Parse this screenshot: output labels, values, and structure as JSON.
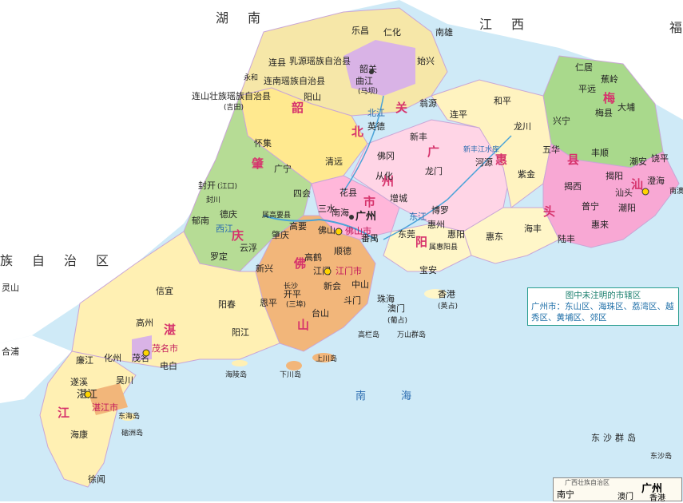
{
  "map": {
    "colors": {
      "sea": "#cfeaf7",
      "outside": "#ffffff",
      "shaoguan": "#f6e7a8",
      "qingyuan": "#ffe98f",
      "zhaoqing": "#b6dc95",
      "meizhou": "#a9d98c",
      "huizhou": "#ffd5e6",
      "guangzhou": "#ffb7da",
      "foshan": "#f2b67a",
      "jiangmen": "#f2b67a",
      "yangjiang": "#fff6c8",
      "maoming": "#ffef9f",
      "zhanjiang": "#fff0b3",
      "shantou": "#f8a8d4",
      "heyuan": "#fff3c0",
      "shanwei": "#f6c6e0"
    },
    "regions_outside": [
      {
        "id": "hunan",
        "label": "湖　南"
      },
      {
        "id": "jiangxi",
        "label": "江　西"
      },
      {
        "id": "fujian",
        "label": "福"
      },
      {
        "id": "guangxi",
        "label": "族　自　治　区"
      }
    ],
    "seas": [
      {
        "id": "nanhai",
        "label": "南　　海"
      }
    ],
    "prefectures": [
      {
        "id": "shaoguan",
        "label": "韶"
      },
      {
        "id": "shaoguan2",
        "label": "关"
      },
      {
        "id": "qingyuan",
        "label": "北"
      },
      {
        "id": "zhaoqing",
        "label": "肇"
      },
      {
        "id": "zhaoqing2",
        "label": "庆"
      },
      {
        "id": "guangzhou",
        "label": "广"
      },
      {
        "id": "guangzhou2",
        "label": "州"
      },
      {
        "id": "guangzhou3",
        "label": "市"
      },
      {
        "id": "foshan",
        "label": "佛"
      },
      {
        "id": "foshan2",
        "label": "山"
      },
      {
        "id": "huizhou",
        "label": "惠"
      },
      {
        "id": "heyuan",
        "label": "阳"
      },
      {
        "id": "meizhou",
        "label": "梅"
      },
      {
        "id": "meizhou2",
        "label": "县"
      },
      {
        "id": "shantou",
        "label": "汕"
      },
      {
        "id": "shantou2",
        "label": "头"
      },
      {
        "id": "zhanjiang",
        "label": "湛"
      },
      {
        "id": "zhanjiang2",
        "label": "江"
      }
    ],
    "places": [
      {
        "name": "乐昌"
      },
      {
        "name": "仁化"
      },
      {
        "name": "南雄"
      },
      {
        "name": "韶关"
      },
      {
        "name": "始兴"
      },
      {
        "name": "曲江"
      },
      {
        "name": "(马坝)"
      },
      {
        "name": "乳源瑶族自治县"
      },
      {
        "name": "连县"
      },
      {
        "name": "连南瑶族自治县"
      },
      {
        "name": "阳山"
      },
      {
        "name": "永和"
      },
      {
        "name": "连山壮族瑶族自治县"
      },
      {
        "name": "(吉田)"
      },
      {
        "name": "翁源"
      },
      {
        "name": "英德"
      },
      {
        "name": "连平"
      },
      {
        "name": "和平"
      },
      {
        "name": "怀集"
      },
      {
        "name": "广宁"
      },
      {
        "name": "清远"
      },
      {
        "name": "佛冈"
      },
      {
        "name": "新丰"
      },
      {
        "name": "从化"
      },
      {
        "name": "龙门"
      },
      {
        "name": "河源"
      },
      {
        "name": "紫金"
      },
      {
        "name": "龙川"
      },
      {
        "name": "五华"
      },
      {
        "name": "兴宁"
      },
      {
        "name": "梅县"
      },
      {
        "name": "大埔"
      },
      {
        "name": "蕉岭"
      },
      {
        "name": "平远"
      },
      {
        "name": "仁居"
      },
      {
        "name": "平远"
      },
      {
        "name": "丰顺"
      },
      {
        "name": "饶平"
      },
      {
        "name": "潮安"
      },
      {
        "name": "澄海"
      },
      {
        "name": "汕头"
      },
      {
        "name": "揭阳"
      },
      {
        "name": "揭西"
      },
      {
        "name": "普宁"
      },
      {
        "name": "潮阳"
      },
      {
        "name": "惠来"
      },
      {
        "name": "陆丰"
      },
      {
        "name": "海丰"
      },
      {
        "name": "惠东"
      },
      {
        "name": "惠阳"
      },
      {
        "name": "惠州"
      },
      {
        "name": "博罗"
      },
      {
        "name": "增城"
      },
      {
        "name": "东莞"
      },
      {
        "name": "宝安"
      },
      {
        "name": "香港"
      },
      {
        "name": "(英占)"
      },
      {
        "name": "澳门"
      },
      {
        "name": "(葡占)"
      },
      {
        "name": "珠海"
      },
      {
        "name": "斗门"
      },
      {
        "name": "中山"
      },
      {
        "name": "江门"
      },
      {
        "name": "江门市"
      },
      {
        "name": "新会"
      },
      {
        "name": "顺德"
      },
      {
        "name": "番禺"
      },
      {
        "name": "南海"
      },
      {
        "name": "佛山"
      },
      {
        "name": "佛山市"
      },
      {
        "name": "广州"
      },
      {
        "name": "花县"
      },
      {
        "name": "三水"
      },
      {
        "name": "四会"
      },
      {
        "name": "高要"
      },
      {
        "name": "肇庆"
      },
      {
        "name": "属高要县"
      },
      {
        "name": "德庆"
      },
      {
        "name": "郁南"
      },
      {
        "name": "封开"
      },
      {
        "name": "(江口)"
      },
      {
        "name": "封川"
      },
      {
        "name": "云浮"
      },
      {
        "name": "罗定"
      },
      {
        "name": "新兴"
      },
      {
        "name": "高鹤"
      },
      {
        "name": "鹤山"
      },
      {
        "name": "开平"
      },
      {
        "name": "(三埠)"
      },
      {
        "name": "台山"
      },
      {
        "name": "恩平"
      },
      {
        "name": "长沙"
      },
      {
        "name": "阳春"
      },
      {
        "name": "阳江"
      },
      {
        "name": "信宜"
      },
      {
        "name": "高州"
      },
      {
        "name": "茂名市"
      },
      {
        "name": "茂名"
      },
      {
        "name": "化州"
      },
      {
        "name": "电白"
      },
      {
        "name": "廉江"
      },
      {
        "name": "吴川"
      },
      {
        "name": "遂溪"
      },
      {
        "name": "湛江"
      },
      {
        "name": "湛江市"
      },
      {
        "name": "海康"
      },
      {
        "name": "徐闻"
      },
      {
        "name": "东海岛"
      },
      {
        "name": "硇洲岛"
      },
      {
        "name": "上川岛"
      },
      {
        "name": "下川岛"
      },
      {
        "name": "海陵岛"
      },
      {
        "name": "高栏岛"
      },
      {
        "name": "万山群岛"
      },
      {
        "name": "东沙群岛"
      },
      {
        "name": "东沙岛"
      },
      {
        "name": "南澳"
      },
      {
        "name": "灵山"
      },
      {
        "name": "合浦"
      },
      {
        "name": "南宁"
      },
      {
        "name": "属惠阳县"
      },
      {
        "name": "新丰江水库"
      },
      {
        "name": "南丰"
      },
      {
        "name": "怀集"
      }
    ],
    "rivers": [
      {
        "label": "北江"
      },
      {
        "label": "西江"
      },
      {
        "label": "东江"
      }
    ]
  },
  "legend": {
    "title": "图中未注明的市辖区",
    "text": "广州市：东山区、海珠区、荔湾区、越秀区、黄埔区、郊区"
  },
  "inset": {
    "label_city": "广州",
    "label_nanning": "南宁",
    "label_macau": "澳门",
    "label_hk": "香港",
    "label_title": "广西壮族自治区"
  }
}
